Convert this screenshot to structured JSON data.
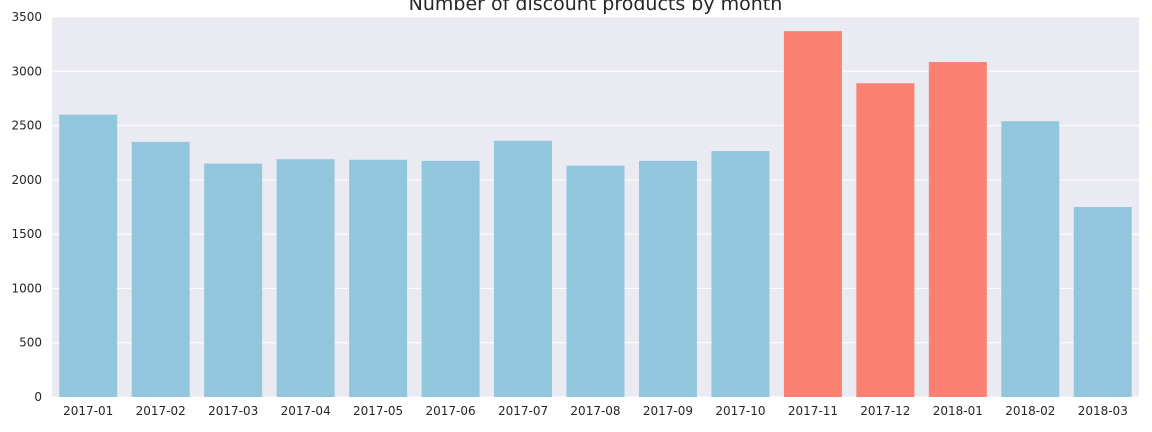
{
  "chart_data": {
    "type": "bar",
    "title": "Number of discount products by month",
    "xlabel": "",
    "ylabel": "",
    "categories": [
      "2017-01",
      "2017-02",
      "2017-03",
      "2017-04",
      "2017-05",
      "2017-06",
      "2017-07",
      "2017-08",
      "2017-09",
      "2017-10",
      "2017-11",
      "2017-12",
      "2018-01",
      "2018-02",
      "2018-03"
    ],
    "values": [
      2600,
      2350,
      2150,
      2190,
      2185,
      2175,
      2360,
      2130,
      2175,
      2265,
      3370,
      2890,
      3085,
      2540,
      1750
    ],
    "bar_colors": [
      "#92c6dc",
      "#92c6dc",
      "#92c6dc",
      "#92c6dc",
      "#92c6dc",
      "#92c6dc",
      "#92c6dc",
      "#92c6dc",
      "#92c6dc",
      "#92c6dc",
      "#fa8072",
      "#fa8072",
      "#fa8072",
      "#92c6dc",
      "#92c6dc"
    ],
    "ylim": [
      0,
      3500
    ],
    "yticks": [
      "0",
      "500",
      "1000",
      "1500",
      "2000",
      "2500",
      "3000",
      "3500"
    ],
    "grid": true,
    "background_color": "#eaeaf2",
    "grid_color": "#ffffff"
  }
}
